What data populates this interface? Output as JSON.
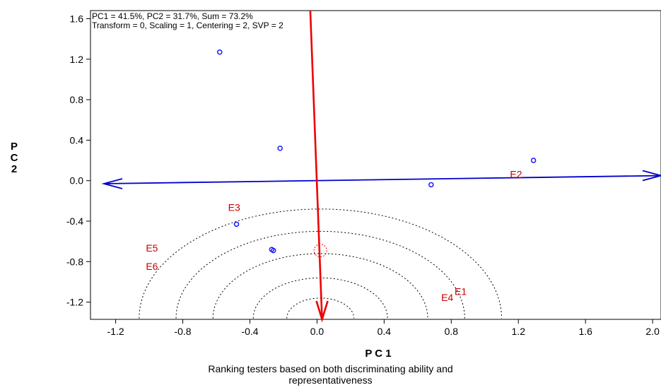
{
  "chart_data": {
    "type": "scatter",
    "title_lines": [
      "PC1 = 41.5%, PC2 = 31.7%, Sum = 73.2%",
      "Transform = 0, Scaling = 1, Centering = 2, SVP = 2"
    ],
    "xlabel": "P C 1",
    "ylabel": "P C 2",
    "caption_lines": [
      "Ranking testers based on both discriminating ability and",
      "representativeness"
    ],
    "xlim": [
      -1.35,
      2.05
    ],
    "ylim": [
      -1.37,
      1.68
    ],
    "xticks": [
      -1.2,
      -0.8,
      -0.4,
      0.0,
      0.4,
      0.8,
      1.2,
      1.6,
      2.0
    ],
    "xtick_labels": [
      "-1.2",
      "-0.8",
      "-0.4",
      "0.0",
      "0.4",
      "0.8",
      "1.2",
      "1.6",
      "2.0"
    ],
    "yticks": [
      1.6,
      1.2,
      0.8,
      0.4,
      0.0,
      -0.4,
      -0.8,
      -1.2
    ],
    "ytick_labels": [
      "1.6",
      "1.2",
      "0.8",
      "0.4",
      "0.0",
      "-0.4",
      "-0.8",
      "-1.2"
    ],
    "points": [
      {
        "x": -0.58,
        "y": 1.27
      },
      {
        "x": -0.22,
        "y": 0.32
      },
      {
        "x": 1.29,
        "y": 0.2
      },
      {
        "x": 0.68,
        "y": -0.04
      },
      {
        "x": -0.48,
        "y": -0.43
      },
      {
        "x": -0.27,
        "y": -0.68
      },
      {
        "x": -0.26,
        "y": -0.69
      }
    ],
    "labels": [
      {
        "text": "E2",
        "x": 1.15,
        "y": 0.03
      },
      {
        "text": "E3",
        "x": -0.53,
        "y": -0.3
      },
      {
        "text": "E5",
        "x": -1.02,
        "y": -0.7
      },
      {
        "text": "E6",
        "x": -1.02,
        "y": -0.88
      },
      {
        "text": "E1",
        "x": 0.82,
        "y": -1.13
      },
      {
        "text": "E4",
        "x": 0.74,
        "y": -1.19
      }
    ],
    "average_environment_axis": {
      "from": [
        -1.27,
        -0.03
      ],
      "to": [
        2.05,
        0.05
      ]
    },
    "ordinate_axis": {
      "from": [
        -0.04,
        1.68
      ],
      "to": [
        0.03,
        -1.37
      ]
    },
    "ideal_point": {
      "x": 0.02,
      "y": -0.69
    },
    "circle_center": {
      "x": 0.02,
      "y": -1.36
    },
    "circle_radii": [
      0.2,
      0.4,
      0.64,
      0.86,
      1.08
    ],
    "colors": {
      "points": "#1a1aff",
      "labels": "#cc0000",
      "axis_line": "#0000cc",
      "vector": "#ee0000"
    }
  }
}
